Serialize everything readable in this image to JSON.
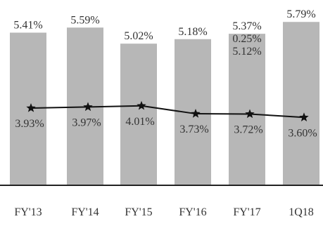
{
  "chart_data": {
    "type": "bar",
    "title": "",
    "xlabel": "",
    "ylabel": "",
    "ylim": [
      0,
      6.2
    ],
    "grid": false,
    "categories": [
      "FY'13",
      "FY'14",
      "FY'15",
      "FY'16",
      "FY'17",
      "1Q18"
    ],
    "series": [
      {
        "kind": "bar",
        "values": [
          5.41,
          5.59,
          5.02,
          5.18,
          5.37,
          5.79
        ],
        "labels": [
          "5.41%",
          "5.59%",
          "5.02%",
          "5.18%",
          "5.37%",
          "5.79%"
        ],
        "color": "#b7b7b7"
      },
      {
        "kind": "line",
        "marker": "star",
        "values": [
          3.93,
          3.97,
          4.01,
          3.73,
          3.72,
          3.6
        ],
        "labels": [
          "3.93%",
          "3.97%",
          "4.01%",
          "3.73%",
          "3.72%",
          "3.60%"
        ],
        "color": "#111111"
      }
    ],
    "annotations": [
      {
        "category": "FY'17",
        "text": "0.25%"
      },
      {
        "category": "FY'17",
        "text": "5.12%"
      }
    ]
  }
}
